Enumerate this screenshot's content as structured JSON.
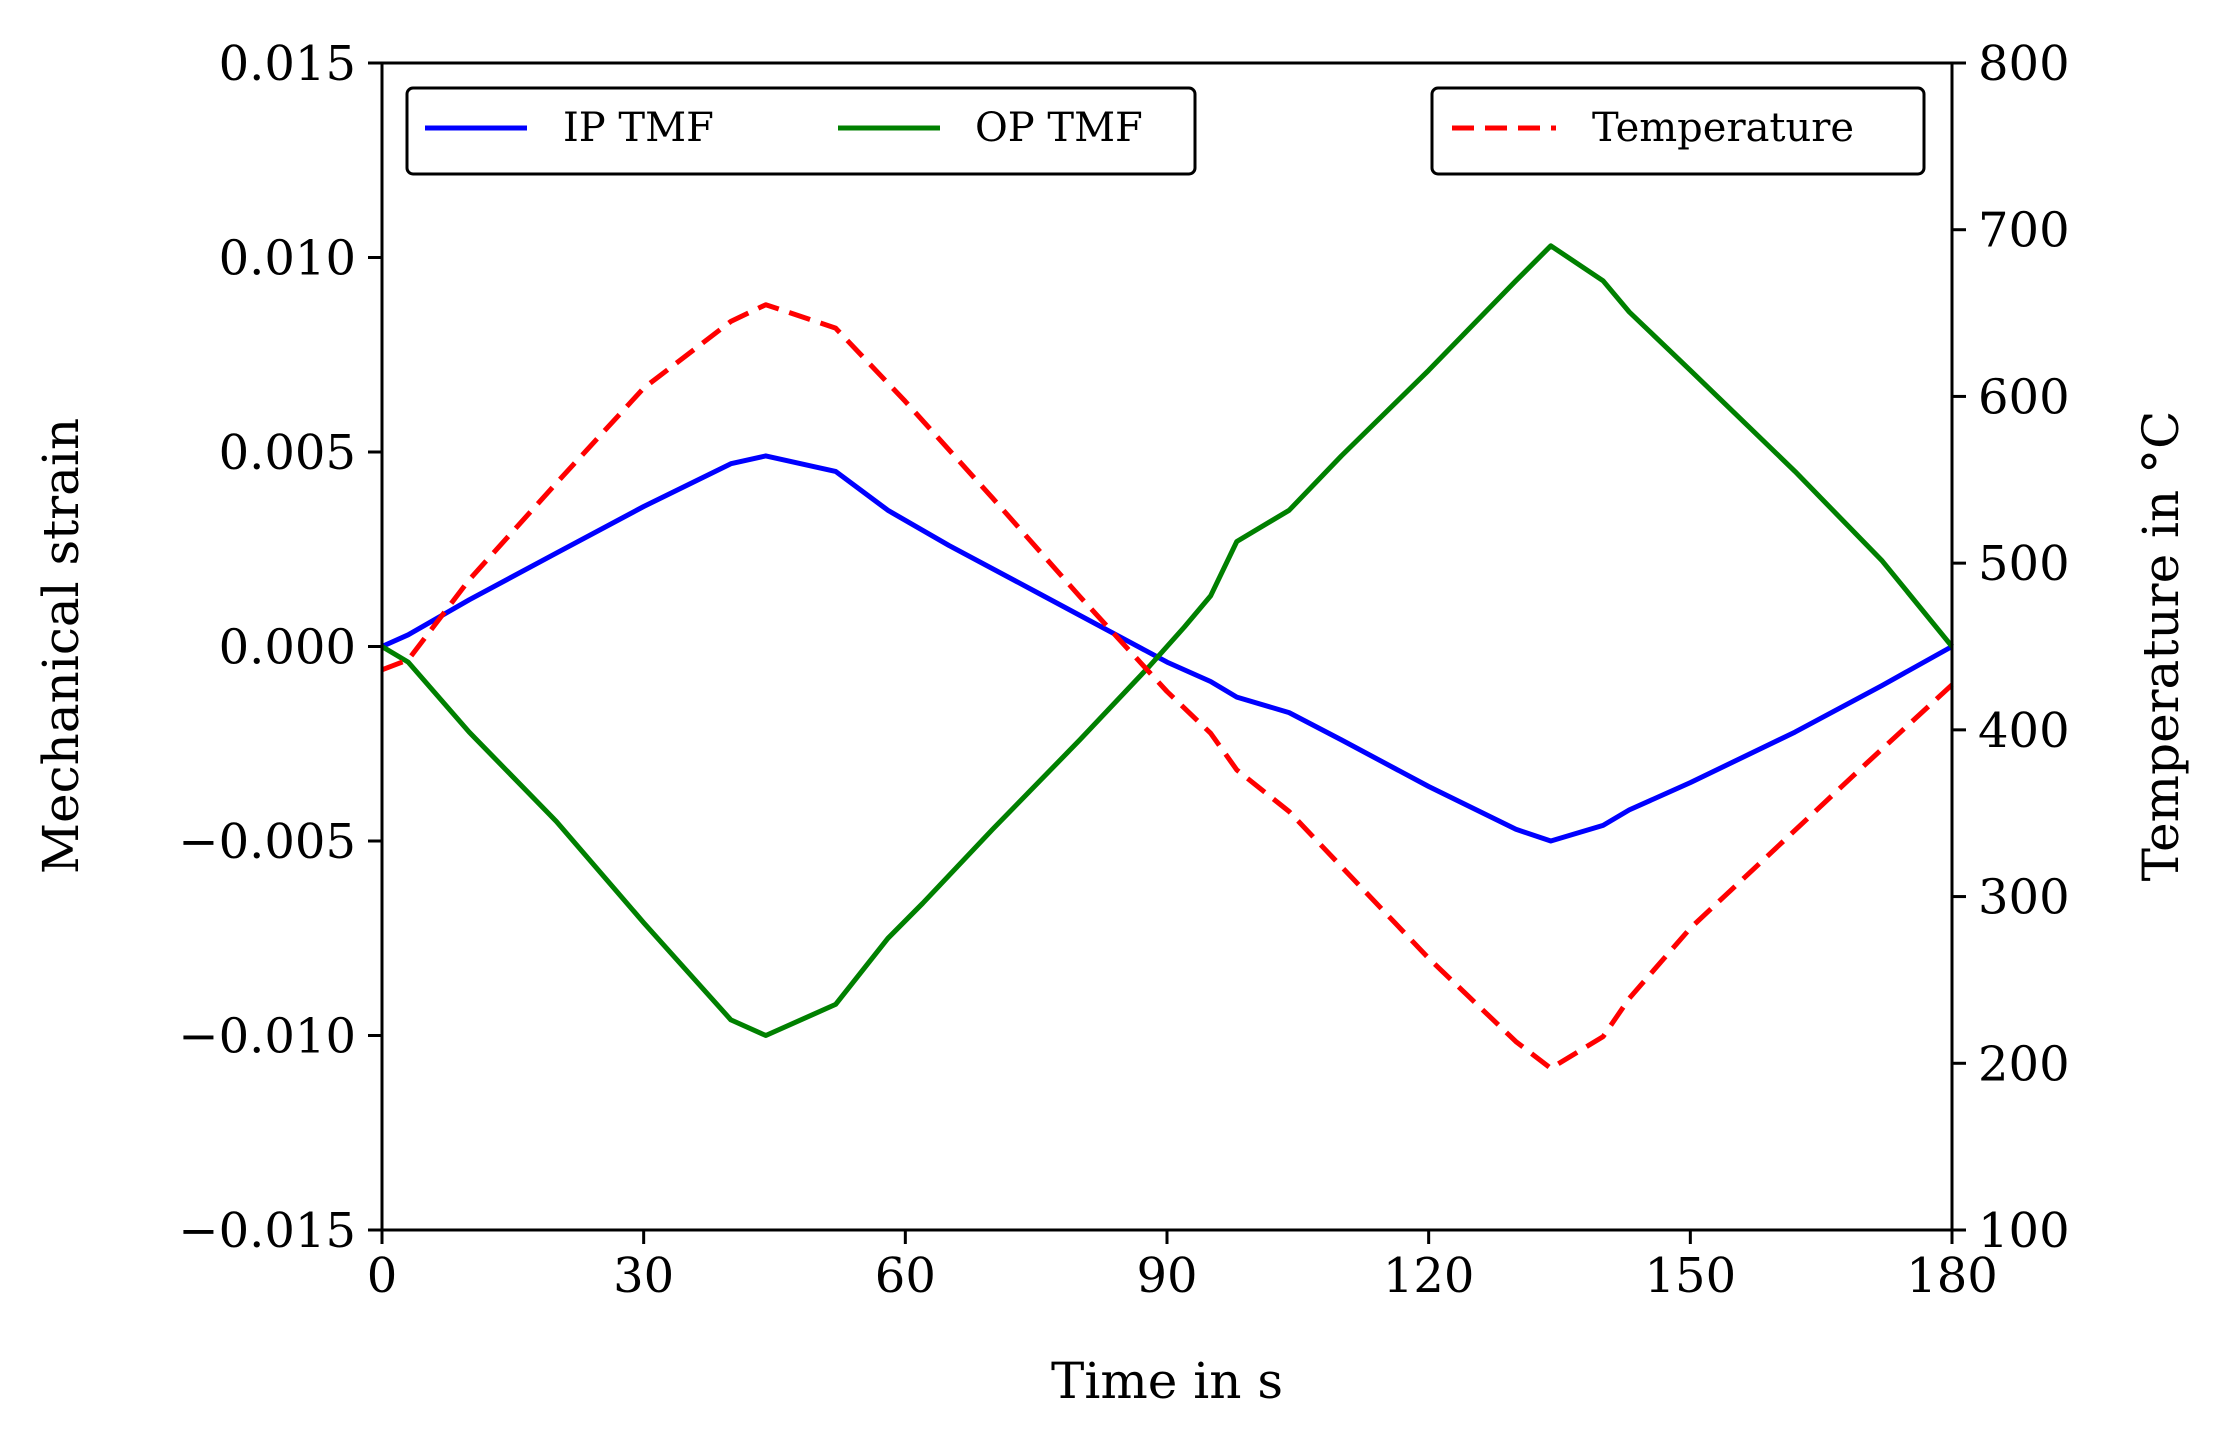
{
  "chart_data": {
    "type": "line",
    "title": "",
    "xlabel": "Time in s",
    "ylabel": "Mechanical strain",
    "y2label": "Temperature in °C",
    "xlim": [
      0,
      180
    ],
    "ylim": [
      -0.015,
      0.015
    ],
    "y2lim": [
      100,
      800
    ],
    "xticks": [
      0,
      30,
      60,
      90,
      120,
      150,
      180
    ],
    "xtick_labels": [
      "0",
      "30",
      "60",
      "90",
      "120",
      "150",
      "180"
    ],
    "yticks": [
      -0.015,
      -0.01,
      -0.005,
      0.0,
      0.005,
      0.01,
      0.015
    ],
    "ytick_labels": [
      "−0.015",
      "−0.010",
      "−0.005",
      "0.000",
      "0.005",
      "0.010",
      "0.015"
    ],
    "y2ticks": [
      100,
      200,
      300,
      400,
      500,
      600,
      700,
      800
    ],
    "y2tick_labels": [
      "100",
      "200",
      "300",
      "400",
      "500",
      "600",
      "700",
      "800"
    ],
    "grid": false,
    "series": [
      {
        "name": "IP TMF",
        "axis": "left",
        "color": "#0000ff",
        "style": "solid",
        "x": [
          0,
          3,
          10,
          20,
          30,
          40,
          44,
          52,
          58,
          65,
          75,
          85,
          90,
          95,
          98,
          104,
          110,
          120,
          130,
          134,
          140,
          143,
          150,
          162,
          172,
          180
        ],
        "y": [
          0.0,
          0.0003,
          0.0012,
          0.0024,
          0.0036,
          0.0047,
          0.0049,
          0.0045,
          0.0035,
          0.0026,
          0.0014,
          0.0002,
          -0.0004,
          -0.0009,
          -0.0013,
          -0.0017,
          -0.0024,
          -0.0036,
          -0.0047,
          -0.005,
          -0.0046,
          -0.0042,
          -0.0035,
          -0.0022,
          -0.001,
          0.0
        ]
      },
      {
        "name": "OP TMF",
        "axis": "left",
        "color": "#008000",
        "style": "solid",
        "x": [
          0,
          3,
          10,
          20,
          30,
          40,
          44,
          52,
          58,
          62,
          70,
          80,
          88,
          92,
          95,
          98,
          104,
          110,
          120,
          130,
          134,
          140,
          143,
          150,
          162,
          172,
          180
        ],
        "y": [
          0.0,
          -0.0004,
          -0.0022,
          -0.0045,
          -0.0071,
          -0.0096,
          -0.01,
          -0.0092,
          -0.0075,
          -0.0066,
          -0.0047,
          -0.0024,
          -0.0005,
          0.0005,
          0.0013,
          0.0027,
          0.0035,
          0.0049,
          0.0071,
          0.0094,
          0.0103,
          0.0094,
          0.0086,
          0.0071,
          0.0045,
          0.0022,
          0.0
        ]
      },
      {
        "name": "Temperature",
        "axis": "right",
        "color": "#ff0000",
        "style": "dashed",
        "x": [
          0,
          3,
          10,
          20,
          30,
          40,
          44,
          52,
          60,
          70,
          80,
          90,
          95,
          98,
          104,
          110,
          120,
          130,
          134,
          140,
          143,
          150,
          160,
          170,
          180
        ],
        "y": [
          436,
          442,
          490,
          548,
          605,
          645,
          655,
          641,
          597,
          539,
          480,
          423,
          398,
          376,
          351,
          318,
          263,
          213,
          197,
          216,
          239,
          281,
          330,
          379,
          427
        ]
      }
    ],
    "legend_left": [
      "IP TMF",
      "OP TMF"
    ],
    "legend_right": [
      "Temperature"
    ]
  }
}
